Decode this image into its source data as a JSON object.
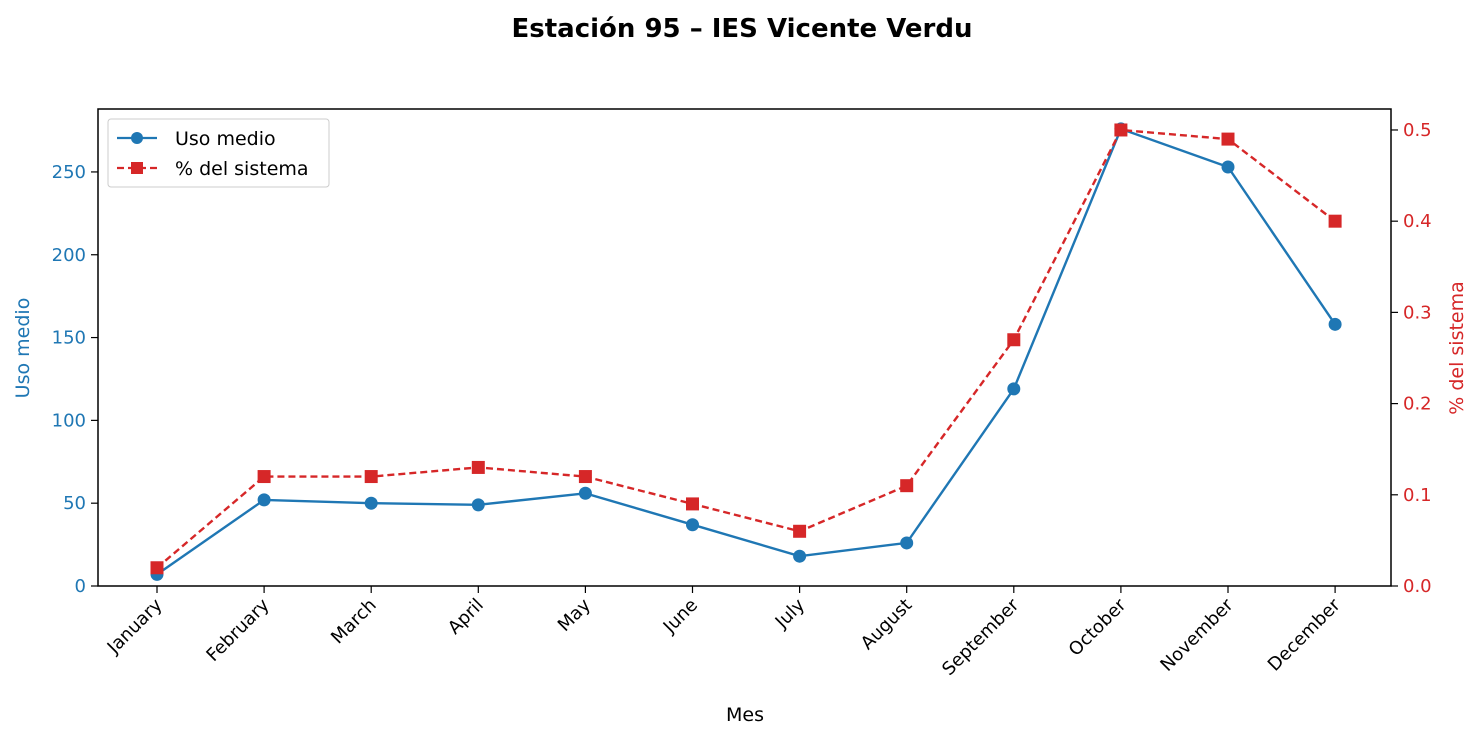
{
  "chart_data": {
    "type": "line",
    "title": "Estación 95 – IES Vicente Verdu",
    "xlabel": "Mes",
    "ylabel_left": "Uso medio",
    "ylabel_right": "% del sistema",
    "categories": [
      "January",
      "February",
      "March",
      "April",
      "May",
      "June",
      "July",
      "August",
      "September",
      "October",
      "November",
      "December"
    ],
    "y_left_lim": [
      0,
      288
    ],
    "y_right_lim": [
      0,
      0.523
    ],
    "y_left_ticks": [
      "0",
      "50",
      "100",
      "150",
      "200",
      "250"
    ],
    "y_right_ticks": [
      "0.0",
      "0.1",
      "0.2",
      "0.3",
      "0.4",
      "0.5"
    ],
    "grid": false,
    "legend_position": "top-left",
    "series": [
      {
        "name": "Uso medio",
        "axis": "left",
        "color": "#1f77b4",
        "line_style": "solid",
        "marker": "circle",
        "values": [
          7,
          52,
          50,
          49,
          56,
          37,
          18,
          26,
          119,
          276,
          253,
          158
        ]
      },
      {
        "name": "% del sistema",
        "axis": "right",
        "color": "#d62728",
        "line_style": "dashed",
        "marker": "square",
        "values": [
          0.02,
          0.12,
          0.12,
          0.13,
          0.12,
          0.09,
          0.06,
          0.11,
          0.27,
          0.5,
          0.49,
          0.4
        ]
      }
    ]
  }
}
